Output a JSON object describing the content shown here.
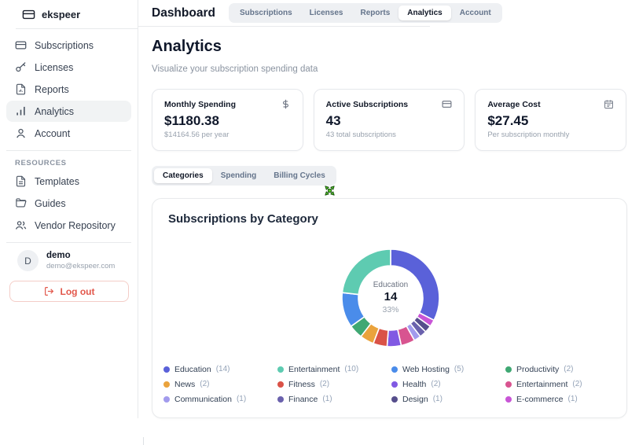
{
  "sidebar": {
    "logo": "ekspeer",
    "nav": [
      {
        "label": "Subscriptions",
        "icon": "credit-card-icon",
        "active": false
      },
      {
        "label": "Licenses",
        "icon": "key-icon",
        "active": false
      },
      {
        "label": "Reports",
        "icon": "report-icon",
        "active": false
      },
      {
        "label": "Analytics",
        "icon": "bar-chart-icon",
        "active": true
      },
      {
        "label": "Account",
        "icon": "user-icon",
        "active": false
      }
    ],
    "resources_label": "RESOURCES",
    "resources": [
      {
        "label": "Templates",
        "icon": "template-icon"
      },
      {
        "label": "Guides",
        "icon": "folder-icon"
      },
      {
        "label": "Vendor Repository",
        "icon": "users-icon"
      }
    ],
    "user": {
      "initial": "D",
      "name": "demo",
      "email": "demo@ekspeer.com"
    },
    "logout_label": "Log out"
  },
  "header": {
    "title": "Dashboard",
    "tabs": [
      {
        "label": "Subscriptions",
        "active": false
      },
      {
        "label": "Licenses",
        "active": false
      },
      {
        "label": "Reports",
        "active": false
      },
      {
        "label": "Analytics",
        "active": true
      },
      {
        "label": "Account",
        "active": false
      }
    ]
  },
  "main": {
    "title": "Analytics",
    "subtitle": "Visualize your subscription spending data",
    "stat_cards": [
      {
        "title": "Monthly Spending",
        "icon": "dollar-icon",
        "value": "$1180.38",
        "subtext": "$14164.56 per year"
      },
      {
        "title": "Active Subscriptions",
        "icon": "credit-card-icon",
        "value": "43",
        "subtext": "43 total subscriptions"
      },
      {
        "title": "Average Cost",
        "icon": "calendar-icon",
        "value": "$27.45",
        "subtext": "Per subscription monthly"
      }
    ],
    "view_tabs": [
      {
        "label": "Categories",
        "active": true
      },
      {
        "label": "Spending",
        "active": false
      },
      {
        "label": "Billing Cycles",
        "active": false
      }
    ]
  },
  "chart_data": {
    "type": "pie",
    "donut": true,
    "title": "Subscriptions by Category",
    "total": 43,
    "center_label": {
      "category": "Education",
      "value": "14",
      "percent": "33%"
    },
    "legend_position": "bottom-grid-4-columns",
    "segments": [
      {
        "label": "Education",
        "count": 14,
        "color": "#5a61d9"
      },
      {
        "label": "Entertainment",
        "count": 10,
        "color": "#5ecbb1"
      },
      {
        "label": "Web Hosting",
        "count": 5,
        "color": "#4a8cea"
      },
      {
        "label": "Productivity",
        "count": 2,
        "color": "#3fa873"
      },
      {
        "label": "News",
        "count": 2,
        "color": "#eaa33c"
      },
      {
        "label": "Fitness",
        "count": 2,
        "color": "#da5247"
      },
      {
        "label": "Health",
        "count": 2,
        "color": "#8159e3"
      },
      {
        "label": "Entertainment",
        "count": 2,
        "color": "#d85490"
      },
      {
        "label": "Communication",
        "count": 1,
        "color": "#a29bed"
      },
      {
        "label": "Finance",
        "count": 1,
        "color": "#6a61ad"
      },
      {
        "label": "Design",
        "count": 1,
        "color": "#564e8c"
      },
      {
        "label": "E-commerce",
        "count": 1,
        "color": "#c855d6"
      }
    ]
  }
}
